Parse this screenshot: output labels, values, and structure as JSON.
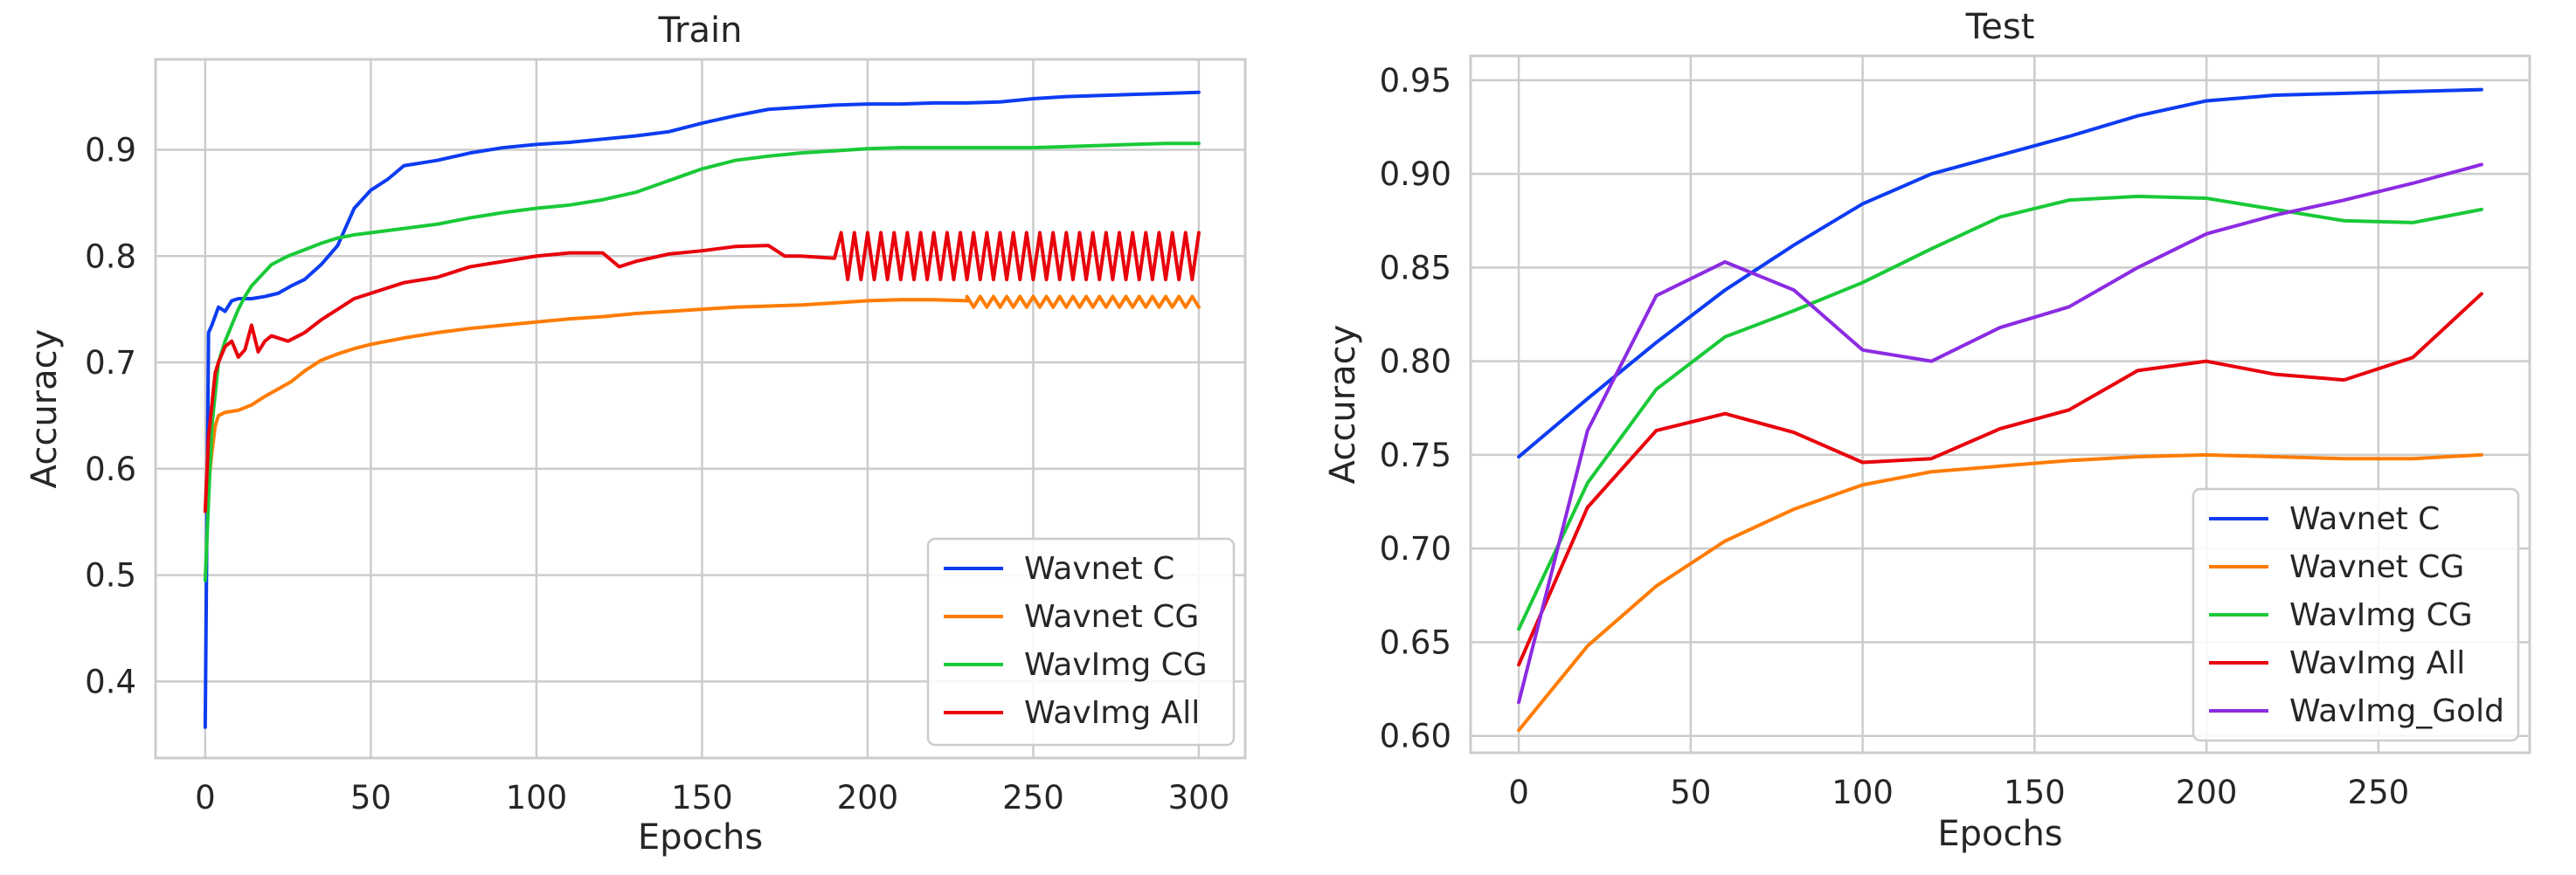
{
  "chart_data": [
    {
      "type": "line",
      "title": "Train",
      "xlabel": "Epochs",
      "ylabel": "Accuracy",
      "xlim": [
        -15,
        314
      ],
      "ylim": [
        0.328,
        0.985
      ],
      "xticks": [
        0,
        50,
        100,
        150,
        200,
        250,
        300
      ],
      "yticks": [
        0.4,
        0.5,
        0.6,
        0.7,
        0.8,
        0.9
      ],
      "ytick_labels": [
        "0.4",
        "0.5",
        "0.6",
        "0.7",
        "0.8",
        "0.9"
      ],
      "grid": true,
      "legend_position": "lower-right",
      "series": [
        {
          "name": "Wavnet C",
          "color": "#0d3cf2",
          "x": [
            0,
            1,
            2,
            4,
            6,
            8,
            10,
            14,
            18,
            22,
            26,
            30,
            35,
            40,
            45,
            50,
            55,
            60,
            70,
            80,
            90,
            100,
            110,
            120,
            130,
            140,
            150,
            160,
            170,
            180,
            190,
            200,
            210,
            220,
            230,
            240,
            250,
            260,
            270,
            280,
            290,
            300
          ],
          "y": [
            0.357,
            0.728,
            0.735,
            0.752,
            0.748,
            0.758,
            0.76,
            0.76,
            0.762,
            0.765,
            0.772,
            0.778,
            0.792,
            0.81,
            0.845,
            0.862,
            0.872,
            0.885,
            0.89,
            0.897,
            0.902,
            0.905,
            0.907,
            0.91,
            0.913,
            0.917,
            0.925,
            0.932,
            0.938,
            0.94,
            0.942,
            0.943,
            0.943,
            0.944,
            0.944,
            0.945,
            0.948,
            0.95,
            0.951,
            0.952,
            0.953,
            0.954
          ]
        },
        {
          "name": "Wavnet CG",
          "color": "#ff7c00",
          "x": [
            0,
            1,
            2,
            3,
            4,
            6,
            8,
            10,
            14,
            18,
            22,
            26,
            30,
            35,
            40,
            45,
            50,
            60,
            70,
            80,
            90,
            100,
            110,
            120,
            130,
            140,
            150,
            160,
            170,
            180,
            190,
            200,
            210,
            220,
            230
          ],
          "y": [
            0.56,
            0.585,
            0.615,
            0.64,
            0.65,
            0.653,
            0.654,
            0.655,
            0.66,
            0.668,
            0.675,
            0.682,
            0.692,
            0.702,
            0.708,
            0.713,
            0.717,
            0.723,
            0.728,
            0.732,
            0.735,
            0.738,
            0.741,
            0.743,
            0.746,
            0.748,
            0.75,
            0.752,
            0.753,
            0.754,
            0.756,
            0.758,
            0.759,
            0.759,
            0.758
          ],
          "oscillation": {
            "x_start": 230,
            "x_end": 300,
            "step": 2,
            "low": 0.752,
            "high": 0.762
          }
        },
        {
          "name": "WavImg CG",
          "color": "#1ac938",
          "x": [
            0,
            1,
            2,
            4,
            6,
            8,
            10,
            12,
            14,
            17,
            20,
            25,
            30,
            35,
            40,
            45,
            50,
            60,
            70,
            80,
            90,
            100,
            110,
            120,
            130,
            140,
            150,
            160,
            170,
            180,
            190,
            200,
            210,
            220,
            230,
            240,
            250,
            260,
            270,
            280,
            290,
            300
          ],
          "y": [
            0.495,
            0.57,
            0.64,
            0.7,
            0.72,
            0.735,
            0.75,
            0.762,
            0.772,
            0.782,
            0.792,
            0.8,
            0.806,
            0.812,
            0.817,
            0.82,
            0.822,
            0.826,
            0.83,
            0.836,
            0.841,
            0.845,
            0.848,
            0.853,
            0.86,
            0.871,
            0.882,
            0.89,
            0.894,
            0.897,
            0.899,
            0.901,
            0.902,
            0.902,
            0.902,
            0.902,
            0.902,
            0.903,
            0.904,
            0.905,
            0.906,
            0.906
          ]
        },
        {
          "name": "WavImg All",
          "color": "#e8000b",
          "x": [
            0,
            1,
            2,
            3,
            4,
            6,
            8,
            10,
            12,
            14,
            16,
            18,
            20,
            25,
            30,
            35,
            40,
            45,
            50,
            60,
            70,
            80,
            90,
            100,
            110,
            120,
            125,
            130,
            140,
            150,
            160,
            170,
            175,
            180,
            190
          ],
          "y": [
            0.56,
            0.63,
            0.66,
            0.69,
            0.7,
            0.715,
            0.72,
            0.705,
            0.712,
            0.735,
            0.71,
            0.72,
            0.725,
            0.72,
            0.728,
            0.74,
            0.75,
            0.76,
            0.765,
            0.775,
            0.78,
            0.79,
            0.795,
            0.8,
            0.803,
            0.803,
            0.79,
            0.795,
            0.802,
            0.805,
            0.809,
            0.81,
            0.8,
            0.8,
            0.798
          ],
          "oscillation": {
            "x_start": 192,
            "x_end": 300,
            "step": 2,
            "low": 0.778,
            "high": 0.822
          }
        }
      ]
    },
    {
      "type": "line",
      "title": "Test",
      "xlabel": "Epochs",
      "ylabel": "Accuracy",
      "xlim": [
        -14,
        294
      ],
      "ylim": [
        0.591,
        0.963
      ],
      "xticks": [
        0,
        50,
        100,
        150,
        200,
        250
      ],
      "yticks": [
        0.6,
        0.65,
        0.7,
        0.75,
        0.8,
        0.85,
        0.9,
        0.95
      ],
      "ytick_labels": [
        "0.60",
        "0.65",
        "0.70",
        "0.75",
        "0.80",
        "0.85",
        "0.90",
        "0.95"
      ],
      "grid": true,
      "legend_position": "lower-right",
      "series": [
        {
          "name": "Wavnet C",
          "color": "#0d3cf2",
          "x": [
            0,
            20,
            40,
            60,
            80,
            100,
            120,
            140,
            160,
            180,
            200,
            220,
            240,
            260,
            280
          ],
          "y": [
            0.749,
            0.78,
            0.81,
            0.838,
            0.862,
            0.884,
            0.9,
            0.91,
            0.92,
            0.931,
            0.939,
            0.942,
            0.943,
            0.944,
            0.945
          ]
        },
        {
          "name": "Wavnet CG",
          "color": "#ff7c00",
          "x": [
            0,
            20,
            40,
            60,
            80,
            100,
            120,
            140,
            160,
            180,
            200,
            220,
            240,
            260,
            280
          ],
          "y": [
            0.603,
            0.648,
            0.68,
            0.704,
            0.721,
            0.734,
            0.741,
            0.744,
            0.747,
            0.749,
            0.75,
            0.749,
            0.748,
            0.748,
            0.75
          ]
        },
        {
          "name": "WavImg CG",
          "color": "#1ac938",
          "x": [
            0,
            20,
            40,
            60,
            80,
            100,
            120,
            140,
            160,
            180,
            200,
            220,
            240,
            260,
            280
          ],
          "y": [
            0.657,
            0.735,
            0.785,
            0.813,
            0.827,
            0.842,
            0.86,
            0.877,
            0.886,
            0.888,
            0.887,
            0.881,
            0.875,
            0.874,
            0.881
          ]
        },
        {
          "name": "WavImg All",
          "color": "#e8000b",
          "x": [
            0,
            20,
            40,
            60,
            80,
            100,
            120,
            140,
            160,
            180,
            200,
            220,
            240,
            260,
            280
          ],
          "y": [
            0.638,
            0.722,
            0.763,
            0.772,
            0.762,
            0.746,
            0.748,
            0.764,
            0.774,
            0.795,
            0.8,
            0.793,
            0.79,
            0.802,
            0.836
          ]
        },
        {
          "name": "WavImg_Gold",
          "color": "#8b2be2",
          "x": [
            0,
            20,
            40,
            60,
            80,
            100,
            120,
            140,
            160,
            180,
            200,
            220,
            240,
            260,
            280
          ],
          "y": [
            0.618,
            0.763,
            0.835,
            0.853,
            0.838,
            0.806,
            0.8,
            0.818,
            0.829,
            0.85,
            0.868,
            0.878,
            0.886,
            0.895,
            0.905
          ]
        }
      ]
    }
  ]
}
